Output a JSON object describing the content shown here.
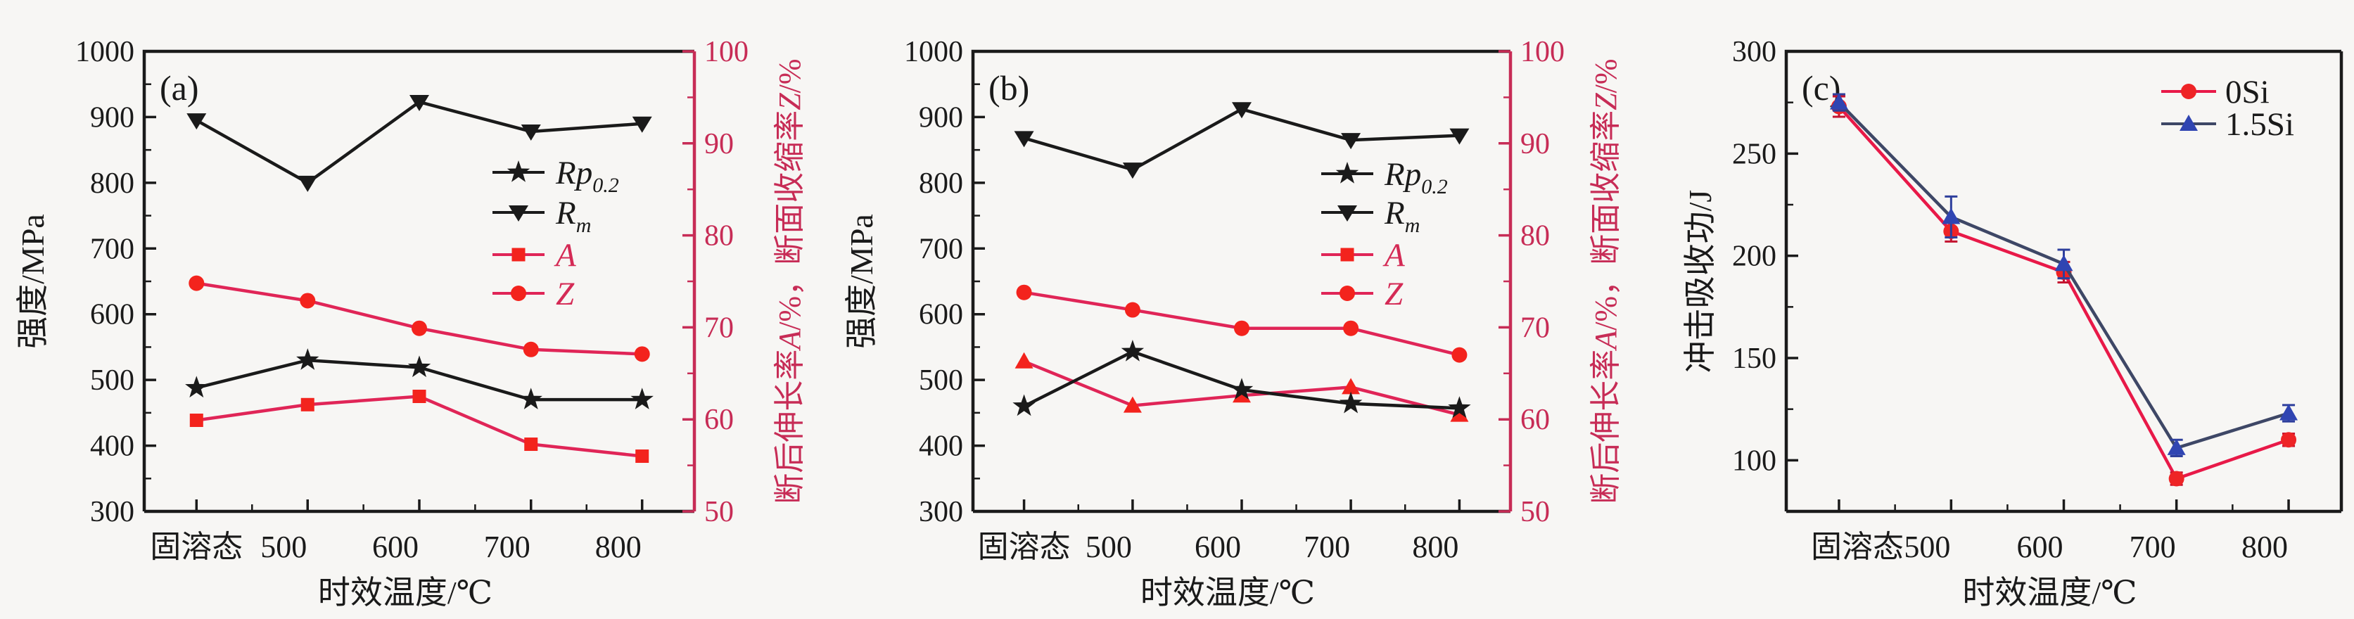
{
  "figure": {
    "background": "#f7f6f4",
    "x_title": "时效温度/℃",
    "x_categories": [
      "固溶态",
      "500",
      "600",
      "700",
      "800"
    ]
  },
  "chart_data": [
    {
      "panel": "(a)",
      "type": "line",
      "x_title": "时效温度/℃",
      "x_categories": [
        "固溶态",
        "500",
        "600",
        "700",
        "800"
      ],
      "left_axis": {
        "label": "强度/MPa",
        "min": 300,
        "max": 1000,
        "ticks": [
          "1000",
          "900",
          "800",
          "700",
          "600",
          "500",
          "400",
          "300"
        ],
        "color": "#1a1a1a"
      },
      "right_axis": {
        "label": "断后伸长率A/%，断面收缩率Z/%",
        "min": 50,
        "max": 100,
        "ticks": [
          "100",
          "90",
          "80",
          "70",
          "60",
          "50"
        ],
        "color": "#c72c56"
      },
      "legend_position": "center-right",
      "series": [
        {
          "name": "Rp",
          "sub": "0.2",
          "axis": "left",
          "marker": "star",
          "italic": true,
          "values": [
            488,
            530,
            519,
            470,
            470
          ],
          "line_color": "#1a1a1a",
          "marker_color": "#1a1a1a",
          "label_color": "#1a1a1a"
        },
        {
          "name": "R",
          "sub": "m",
          "axis": "left",
          "marker": "tri-down",
          "italic": true,
          "values": [
            895,
            800,
            923,
            878,
            890
          ],
          "line_color": "#1a1a1a",
          "marker_color": "#1a1a1a",
          "label_color": "#1a1a1a"
        },
        {
          "name": "A",
          "sub": "",
          "axis": "right",
          "marker": "square",
          "italic": true,
          "values": [
            59.9,
            61.6,
            62.5,
            57.3,
            56.0
          ],
          "line_color": "#e02557",
          "marker_color": "#f3231d",
          "label_color": "#d42a55"
        },
        {
          "name": "Z",
          "sub": "",
          "axis": "right",
          "marker": "circle",
          "italic": true,
          "values": [
            74.8,
            72.9,
            69.9,
            67.6,
            67.1
          ],
          "line_color": "#e02557",
          "marker_color": "#f3231d",
          "label_color": "#d42a55"
        }
      ]
    },
    {
      "panel": "(b)",
      "type": "line",
      "x_title": "时效温度/℃",
      "x_categories": [
        "固溶态",
        "500",
        "600",
        "700",
        "800"
      ],
      "left_axis": {
        "label": "强度/MPa",
        "min": 300,
        "max": 1000,
        "ticks": [
          "1000",
          "900",
          "800",
          "700",
          "600",
          "500",
          "400",
          "300"
        ],
        "color": "#1a1a1a"
      },
      "right_axis": {
        "label": "断后伸长率A/%，断面收缩率Z/%",
        "min": 50,
        "max": 100,
        "ticks": [
          "100",
          "90",
          "80",
          "70",
          "60",
          "50"
        ],
        "color": "#c72c56"
      },
      "legend_position": "center-right",
      "series": [
        {
          "name": "Rp",
          "sub": "0.2",
          "axis": "left",
          "marker": "star",
          "italic": true,
          "values": [
            460,
            543,
            485,
            464,
            457
          ],
          "line_color": "#1a1a1a",
          "marker_color": "#1a1a1a",
          "label_color": "#1a1a1a"
        },
        {
          "name": "R",
          "sub": "m",
          "axis": "left",
          "marker": "tri-down",
          "italic": true,
          "values": [
            868,
            820,
            912,
            865,
            872
          ],
          "line_color": "#1a1a1a",
          "marker_color": "#1a1a1a",
          "label_color": "#1a1a1a"
        },
        {
          "name": "A",
          "sub": "",
          "axis": "right",
          "marker": "square",
          "plot_marker": "tri-up",
          "italic": true,
          "values": [
            66.3,
            61.5,
            62.6,
            63.5,
            60.5
          ],
          "line_color": "#e02557",
          "marker_color": "#f3231d",
          "label_color": "#d42a55"
        },
        {
          "name": "Z",
          "sub": "",
          "axis": "right",
          "marker": "circle",
          "italic": true,
          "values": [
            73.8,
            71.9,
            69.9,
            69.9,
            67.0
          ],
          "line_color": "#e02557",
          "marker_color": "#f3231d",
          "label_color": "#d42a55"
        }
      ]
    },
    {
      "panel": "(c)",
      "type": "line",
      "x_title": "时效温度/℃",
      "x_categories": [
        "固溶态",
        "500",
        "600",
        "700",
        "800"
      ],
      "left_axis": {
        "label": "冲击吸收功/J",
        "min": 75,
        "max": 300,
        "ticks": [
          "300",
          "250",
          "200",
          "150",
          "100"
        ],
        "color": "#1a1a1a"
      },
      "legend_position": "top-right",
      "series": [
        {
          "name": "0Si",
          "sub": "",
          "axis": "left",
          "marker": "circle",
          "italic": false,
          "values": [
            273,
            212,
            192,
            91,
            110
          ],
          "errors": [
            5,
            5,
            5,
            3,
            3
          ],
          "line_color": "#e81948",
          "marker_color": "#ee2426",
          "error_color": "#c41430",
          "label_color": "#1a1a1a"
        },
        {
          "name": "1.5Si",
          "sub": "",
          "axis": "left",
          "marker": "tri-up",
          "italic": false,
          "values": [
            275,
            219,
            196,
            106,
            123
          ],
          "errors": [
            4,
            10,
            7,
            4,
            4
          ],
          "line_color": "#3e4766",
          "marker_color": "#3045b2",
          "error_color": "#2e3f9c",
          "label_color": "#1a1a1a"
        }
      ]
    }
  ]
}
